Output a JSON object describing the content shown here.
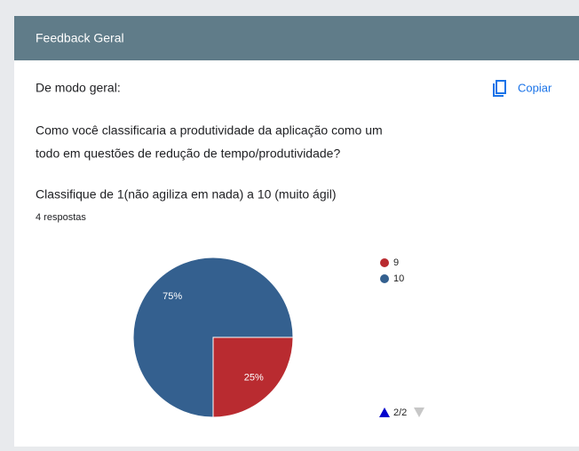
{
  "header": {
    "title": "Feedback Geral"
  },
  "section": {
    "label": "De modo geral:",
    "copy": "Copiar"
  },
  "question": {
    "line1": "Como você classificaria a produtividade da aplicação como um",
    "line2": "todo em questões de redução de tempo/produtividade?"
  },
  "chart_data": {
    "type": "pie",
    "title": "Classifique de 1(não agiliza em nada) a 10 (muito ágil)",
    "subtitle": "4 respostas",
    "categories": [
      "9",
      "10"
    ],
    "values": [
      25,
      75
    ],
    "value_labels": [
      "25%",
      "75%"
    ],
    "colors": [
      "#b92b30",
      "#34608f"
    ],
    "pager": "2/2"
  }
}
